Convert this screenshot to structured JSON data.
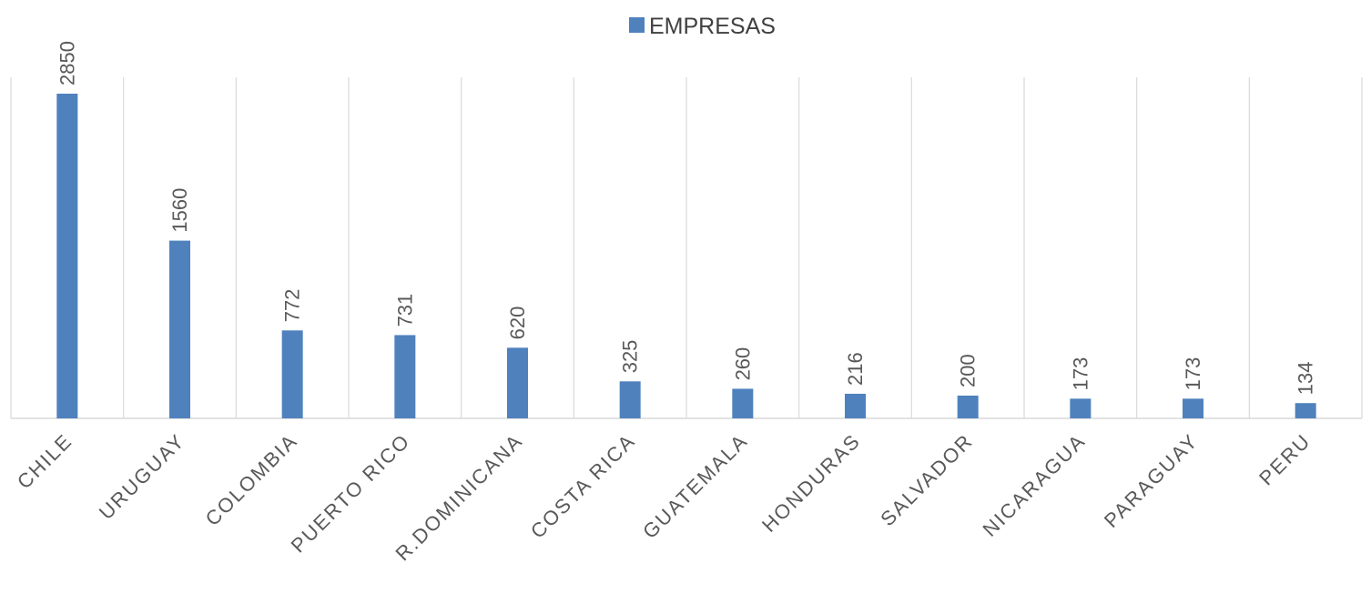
{
  "chart_data": {
    "type": "bar",
    "categories": [
      "CHILE",
      "URUGUAY",
      "COLOMBIA",
      "PUERTO RICO",
      "R.DOMINICANA",
      "COSTA RICA",
      "GUATEMALA",
      "HONDURAS",
      "SALVADOR",
      "NICARAGUA",
      "PARAGUAY",
      "PERU"
    ],
    "series": [
      {
        "name": "EMPRESAS",
        "values": [
          2850,
          1560,
          772,
          731,
          620,
          325,
          260,
          216,
          200,
          173,
          173,
          134
        ],
        "color": "#4f81bd"
      }
    ],
    "ylim": [
      0,
      2850
    ],
    "grid": "vertical",
    "legend": "top",
    "data_labels": true
  }
}
